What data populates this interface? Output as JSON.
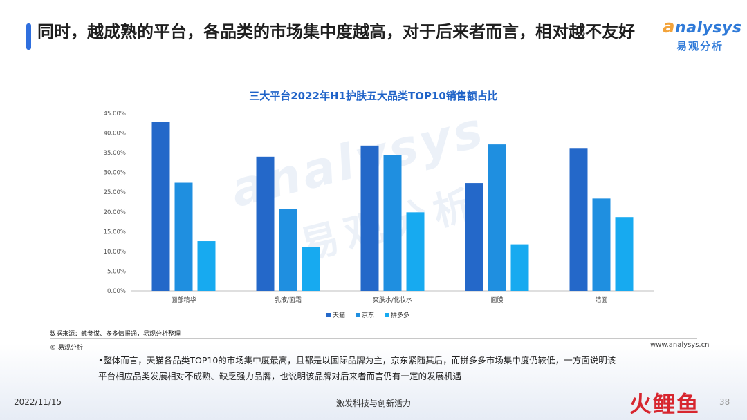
{
  "slide": {
    "title": "同时，越成熟的平台，各品类的市场集中度越高，对于后来者而言，相对越不友好",
    "logo_en_first": "a",
    "logo_en_rest": "nalysys",
    "logo_cn": "易观分析",
    "watermark_en": "analysys",
    "watermark_cn": "易观分析",
    "source": "数据来源：鲸参谋、多多情报通，易观分析整理",
    "copyright": "© 易观分析",
    "website": "www.analysys.cn",
    "conclusion": "•整体而言，天猫各品类TOP10的市场集中度最高，且都是以国际品牌为主，京东紧随其后，而拼多多市场集中度仍较低，一方面说明该平台相应品类发展相对不成熟、缺乏强力品牌，也说明该品牌对后来者而言仍有一定的发展机遇",
    "date": "2022/11/15",
    "tagline": "激发科技与创新活力",
    "page_number": "38",
    "brand": "火鲤鱼",
    "colors": {
      "accent": "#2f6fde",
      "tmall": "#2468c9",
      "jd": "#1f8fe0",
      "pdd": "#17aaf0"
    }
  },
  "chart_data": {
    "type": "bar",
    "title": "三大平台2022年H1护肤五大品类TOP10销售额占比",
    "categories": [
      "面部精华",
      "乳液/面霜",
      "爽肤水/化妆水",
      "面膜",
      "洁面"
    ],
    "series": [
      {
        "name": "天猫",
        "color": "#2468c9",
        "values": [
          42.8,
          34.0,
          36.8,
          27.3,
          36.2
        ]
      },
      {
        "name": "京东",
        "color": "#1f8fe0",
        "values": [
          27.4,
          20.8,
          34.4,
          37.1,
          23.4
        ]
      },
      {
        "name": "拼多多",
        "color": "#17aaf0",
        "values": [
          12.6,
          11.1,
          19.9,
          11.8,
          18.7
        ]
      }
    ],
    "ylim": [
      0,
      45
    ],
    "yticks": [
      "0.00%",
      "5.00%",
      "10.00%",
      "15.00%",
      "20.00%",
      "25.00%",
      "30.00%",
      "35.00%",
      "40.00%",
      "45.00%"
    ],
    "xlabel": "",
    "ylabel": "",
    "grid": false,
    "legend_position": "bottom"
  }
}
